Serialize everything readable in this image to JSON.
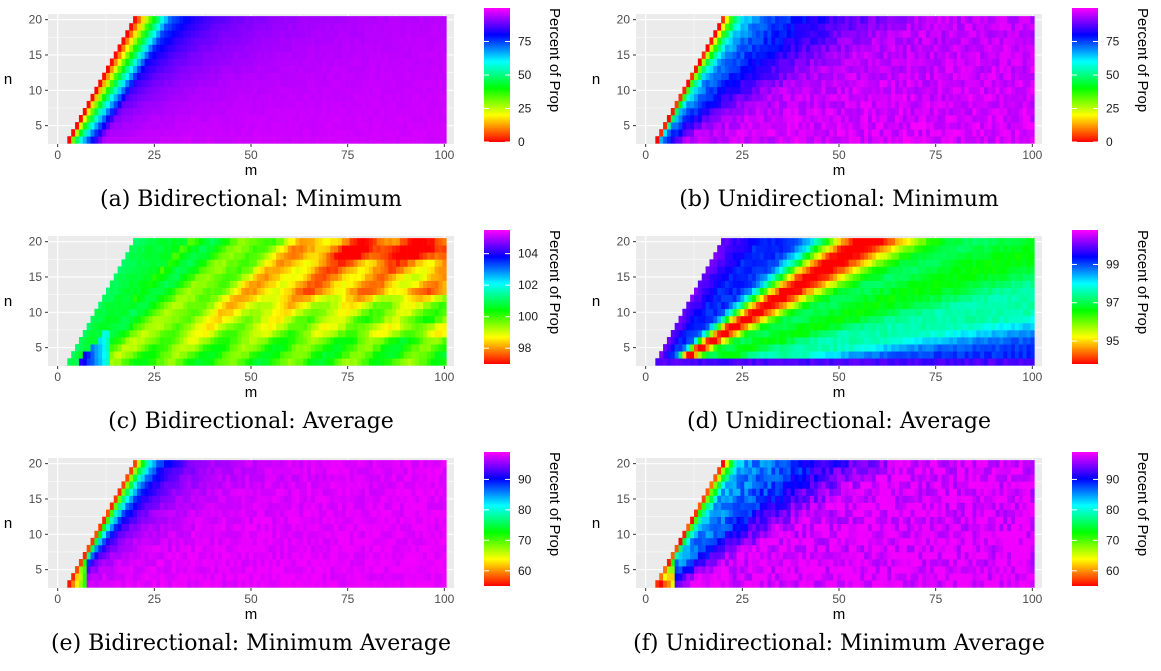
{
  "chart_data": [
    {
      "type": "heatmap",
      "caption": "(a) Bidirectional: Minimum",
      "xlabel": "m",
      "ylabel": "n",
      "legend_title": "Percent of Prop",
      "xlim": [
        0,
        100
      ],
      "ylim": [
        3,
        20
      ],
      "x_ticks": [
        "0",
        "25",
        "50",
        "75",
        "100"
      ],
      "y_ticks": [
        "5",
        "10",
        "15",
        "20"
      ],
      "color_min": 0,
      "color_max": 100,
      "legend_ticks": [
        {
          "label": "0",
          "value": 0
        },
        {
          "label": "25",
          "value": 25
        },
        {
          "label": "50",
          "value": 50
        },
        {
          "label": "75",
          "value": 75
        }
      ],
      "legend_position": "right",
      "colors": [
        "#ff0000",
        "#ffff00",
        "#00ff00",
        "#00ffff",
        "#0000ff",
        "#ff00ff"
      ],
      "pattern": "minimum",
      "noise": 0.5
    },
    {
      "type": "heatmap",
      "caption": "(b) Unidirectional: Minimum",
      "xlabel": "m",
      "ylabel": "n",
      "legend_title": "Percent of Prop",
      "xlim": [
        0,
        100
      ],
      "ylim": [
        3,
        20
      ],
      "x_ticks": [
        "0",
        "25",
        "50",
        "75",
        "100"
      ],
      "y_ticks": [
        "5",
        "10",
        "15",
        "20"
      ],
      "color_min": 0,
      "color_max": 100,
      "legend_ticks": [
        {
          "label": "0",
          "value": 0
        },
        {
          "label": "25",
          "value": 25
        },
        {
          "label": "50",
          "value": 50
        },
        {
          "label": "75",
          "value": 75
        }
      ],
      "legend_position": "right",
      "colors": [
        "#ff0000",
        "#ffff00",
        "#00ff00",
        "#00ffff",
        "#0000ff",
        "#ff00ff"
      ],
      "pattern": "minimum_uni",
      "noise": 3
    },
    {
      "type": "heatmap",
      "caption": "(c) Bidirectional: Average",
      "xlabel": "m",
      "ylabel": "n",
      "legend_title": "Percent of Prop",
      "xlim": [
        0,
        100
      ],
      "ylim": [
        3,
        20
      ],
      "x_ticks": [
        "0",
        "25",
        "50",
        "75",
        "100"
      ],
      "y_ticks": [
        "5",
        "10",
        "15",
        "20"
      ],
      "color_min": 97,
      "color_max": 105.5,
      "legend_ticks": [
        {
          "label": "98",
          "value": 98
        },
        {
          "label": "100",
          "value": 100
        },
        {
          "label": "102",
          "value": 102
        },
        {
          "label": "104",
          "value": 104
        }
      ],
      "legend_position": "right",
      "colors": [
        "#ff0000",
        "#ffff00",
        "#00ff00",
        "#00ffff",
        "#0000ff",
        "#ff00ff"
      ],
      "pattern": "average_bi",
      "noise": 0.15
    },
    {
      "type": "heatmap",
      "caption": "(d) Unidirectional: Average",
      "xlabel": "m",
      "ylabel": "n",
      "legend_title": "Percent of Prop",
      "xlim": [
        0,
        100
      ],
      "ylim": [
        3,
        20
      ],
      "x_ticks": [
        "0",
        "25",
        "50",
        "75",
        "100"
      ],
      "y_ticks": [
        "5",
        "10",
        "15",
        "20"
      ],
      "color_min": 93.8,
      "color_max": 100.8,
      "legend_ticks": [
        {
          "label": "95",
          "value": 95
        },
        {
          "label": "97",
          "value": 97
        },
        {
          "label": "99",
          "value": 99
        }
      ],
      "legend_position": "right",
      "colors": [
        "#ff0000",
        "#ffff00",
        "#00ff00",
        "#00ffff",
        "#0000ff",
        "#ff00ff"
      ],
      "pattern": "average_uni",
      "noise": 0.15
    },
    {
      "type": "heatmap",
      "caption": "(e) Bidirectional: Minimum Average",
      "xlabel": "m",
      "ylabel": "n",
      "legend_title": "Percent of Prop",
      "xlim": [
        0,
        100
      ],
      "ylim": [
        3,
        20
      ],
      "x_ticks": [
        "0",
        "25",
        "50",
        "75",
        "100"
      ],
      "y_ticks": [
        "5",
        "10",
        "15",
        "20"
      ],
      "color_min": 55,
      "color_max": 99,
      "legend_ticks": [
        {
          "label": "60",
          "value": 60
        },
        {
          "label": "70",
          "value": 70
        },
        {
          "label": "80",
          "value": 80
        },
        {
          "label": "90",
          "value": 90
        }
      ],
      "legend_position": "right",
      "colors": [
        "#ff0000",
        "#ffff00",
        "#00ff00",
        "#00ffff",
        "#0000ff",
        "#ff00ff"
      ],
      "pattern": "minavg_bi",
      "noise": 0.8
    },
    {
      "type": "heatmap",
      "caption": "(f) Unidirectional: Minimum Average",
      "xlabel": "m",
      "ylabel": "n",
      "legend_title": "Percent of Prop",
      "xlim": [
        0,
        100
      ],
      "ylim": [
        3,
        20
      ],
      "x_ticks": [
        "0",
        "25",
        "50",
        "75",
        "100"
      ],
      "y_ticks": [
        "5",
        "10",
        "15",
        "20"
      ],
      "color_min": 55,
      "color_max": 99,
      "legend_ticks": [
        {
          "label": "60",
          "value": 60
        },
        {
          "label": "70",
          "value": 70
        },
        {
          "label": "80",
          "value": 80
        },
        {
          "label": "90",
          "value": 90
        }
      ],
      "legend_position": "right",
      "colors": [
        "#ff0000",
        "#ffff00",
        "#00ff00",
        "#00ffff",
        "#0000ff",
        "#ff00ff"
      ],
      "pattern": "minavg_uni",
      "noise": 2.2
    }
  ]
}
